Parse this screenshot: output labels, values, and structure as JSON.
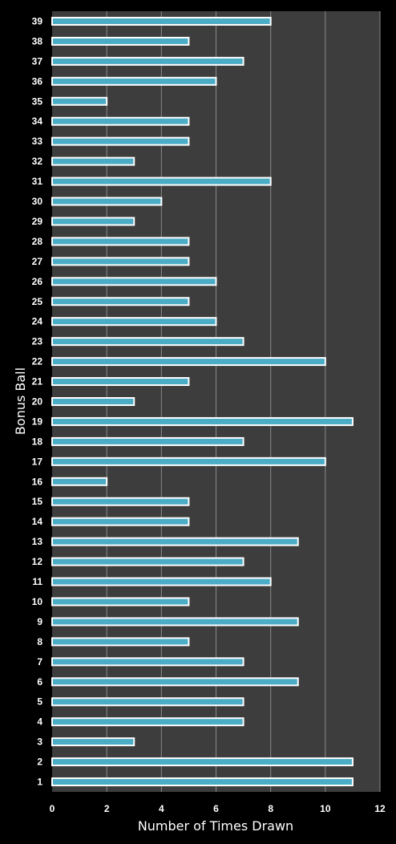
{
  "chart_data": {
    "type": "bar",
    "orientation": "horizontal",
    "xlabel": "Number of Times Drawn",
    "ylabel": "Bonus Ball",
    "xlim": [
      0,
      12
    ],
    "xticks": [
      0,
      2,
      4,
      6,
      8,
      10,
      12
    ],
    "grid": "vertical",
    "legend": "none",
    "categories": [
      "1",
      "2",
      "3",
      "4",
      "5",
      "6",
      "7",
      "8",
      "9",
      "10",
      "11",
      "12",
      "13",
      "14",
      "15",
      "16",
      "17",
      "18",
      "19",
      "20",
      "21",
      "22",
      "23",
      "24",
      "25",
      "26",
      "27",
      "28",
      "29",
      "30",
      "31",
      "32",
      "33",
      "34",
      "35",
      "36",
      "37",
      "38",
      "39"
    ],
    "values": [
      11,
      11,
      3,
      7,
      7,
      9,
      7,
      5,
      9,
      5,
      8,
      7,
      9,
      5,
      5,
      2,
      10,
      7,
      11,
      3,
      5,
      10,
      7,
      6,
      5,
      6,
      5,
      5,
      3,
      4,
      8,
      3,
      5,
      5,
      2,
      6,
      7,
      5,
      8
    ],
    "colors": {
      "background": "#000000",
      "plot_area": "#3d3d3d",
      "bar_fill": "#4bacc6",
      "bar_border": "#ffffff",
      "gridline": "#8a8a8a",
      "text": "#ffffff"
    }
  }
}
